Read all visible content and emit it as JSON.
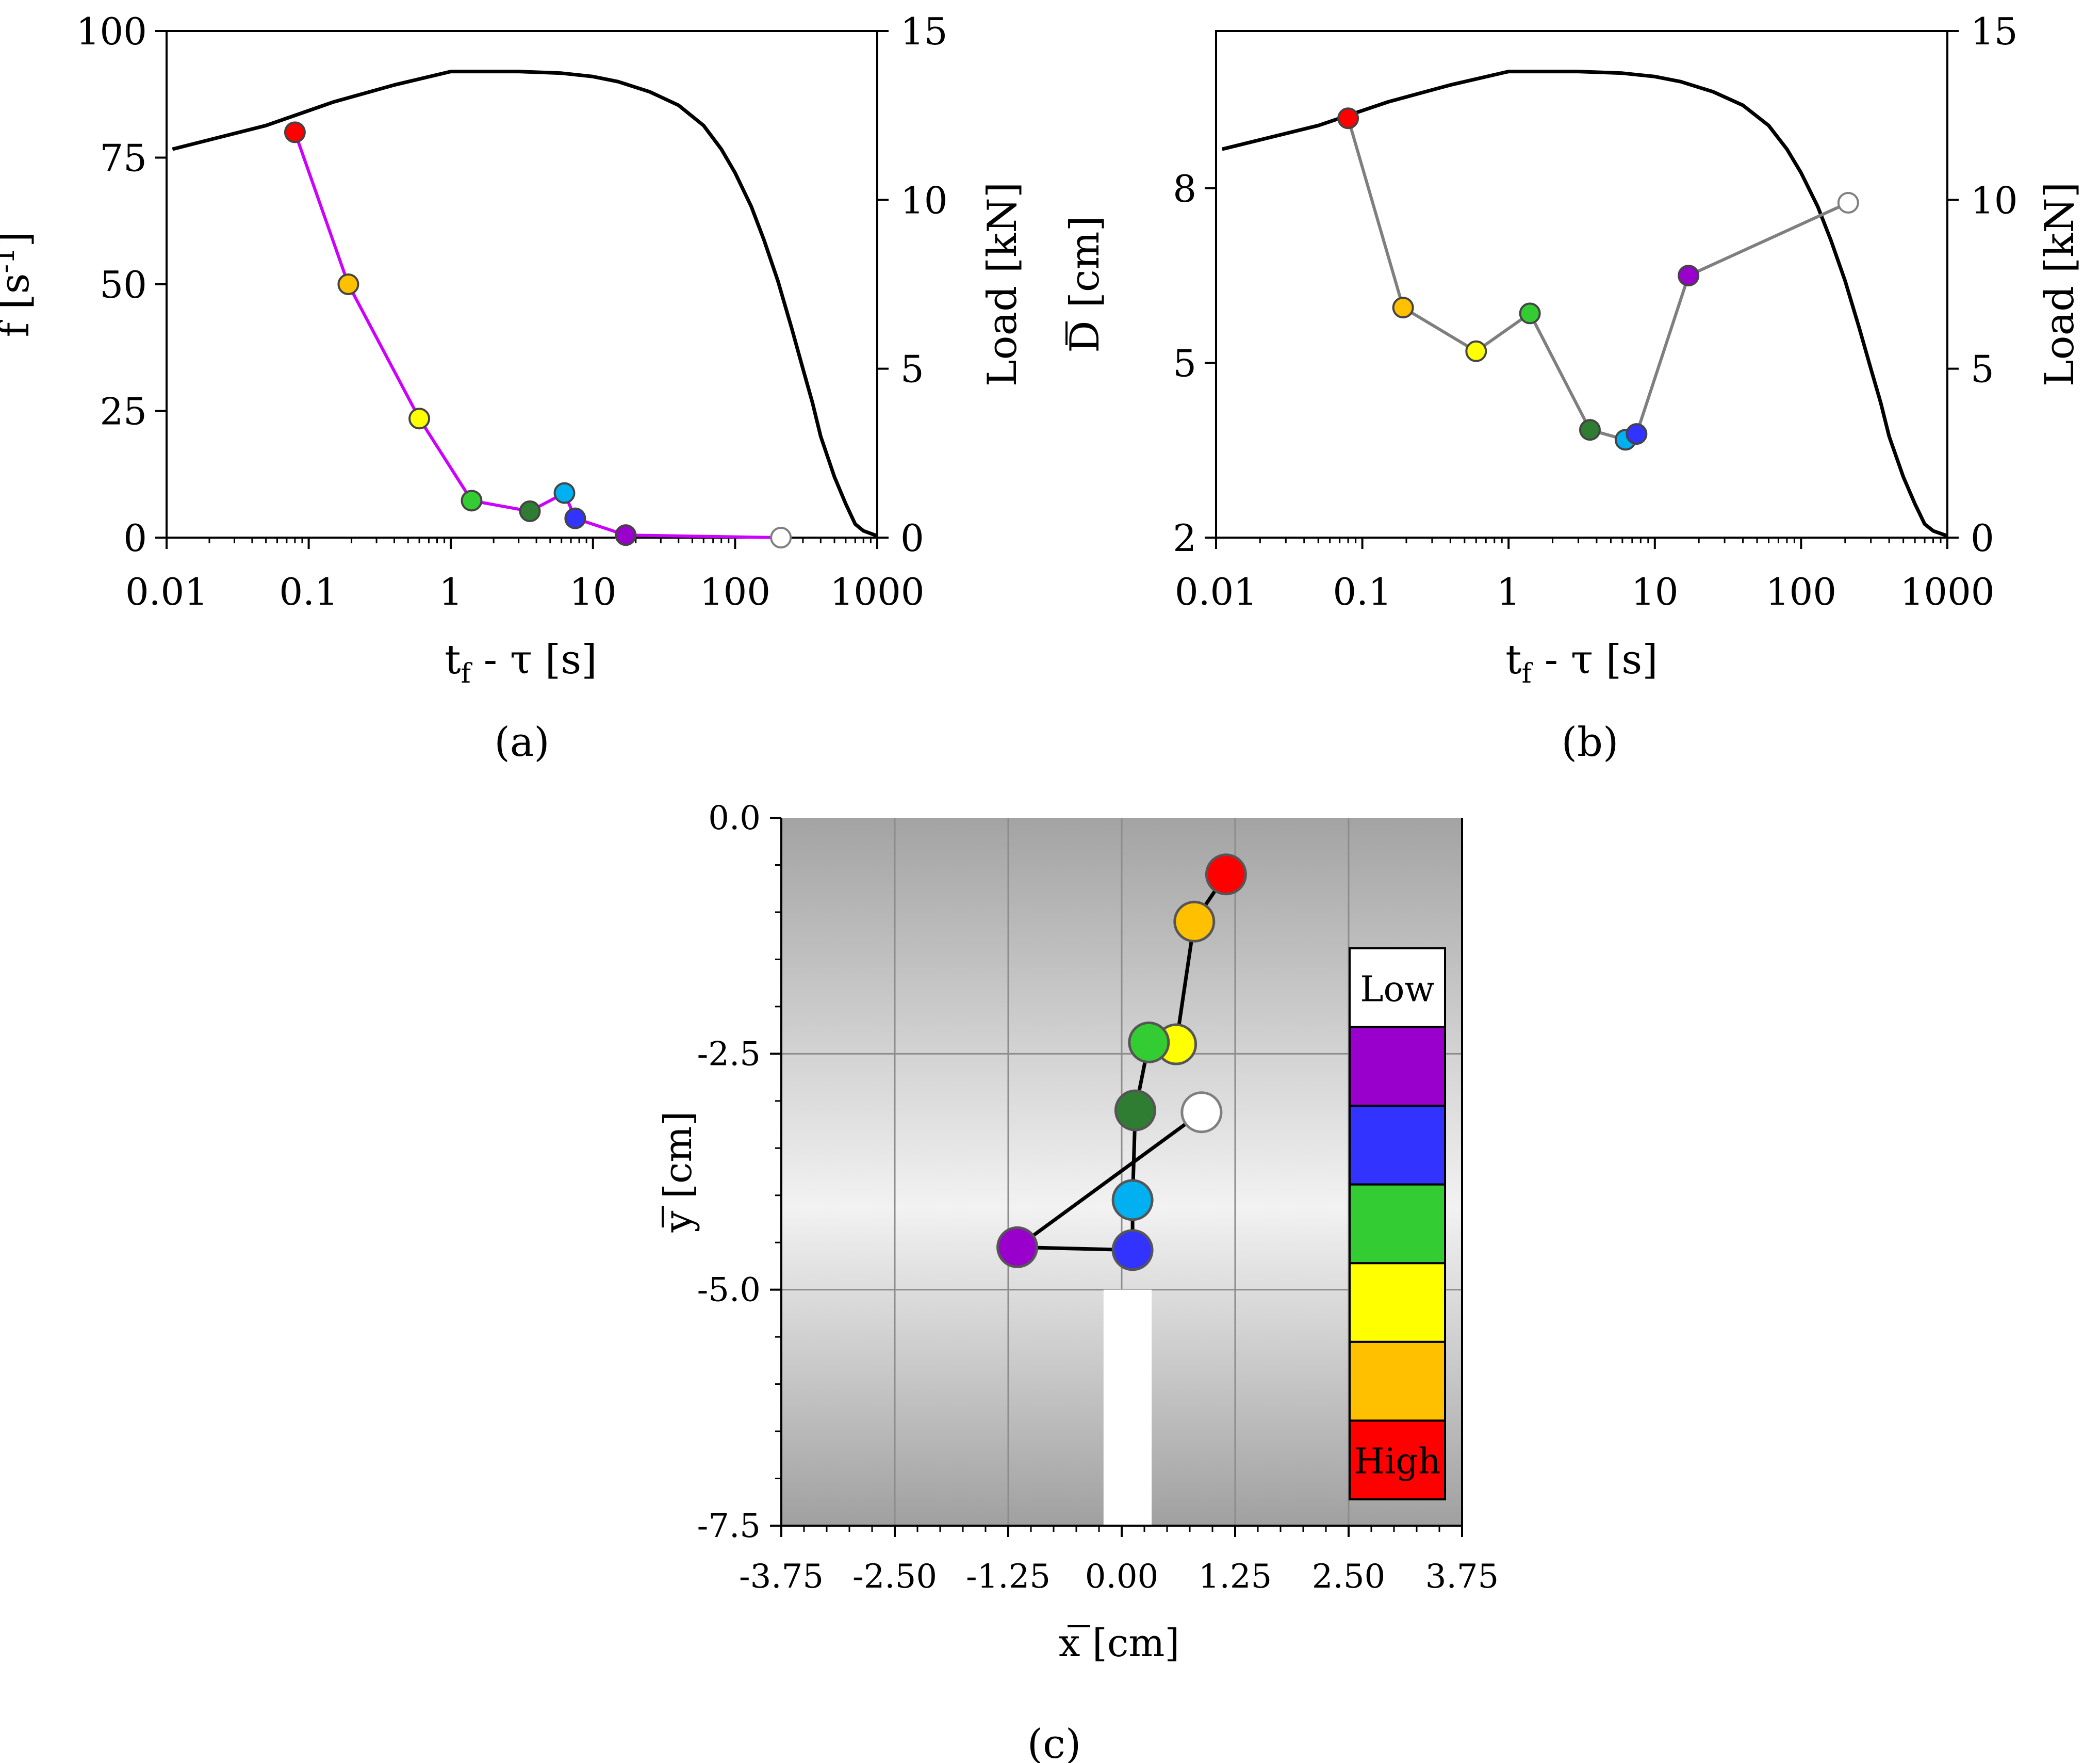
{
  "chart_data": [
    {
      "panel": "(a)",
      "type": "line",
      "xscale": "log",
      "xlim": [
        0.01,
        1000
      ],
      "x_ticks": [
        "0.01",
        "0.1",
        "1",
        "10",
        "100",
        "1000"
      ],
      "xlabel": "t_f - τ [s]",
      "ylabel": "f [s^-1]",
      "ylim": [
        0,
        100
      ],
      "y_ticks": [
        "0",
        "25",
        "50",
        "75",
        "100"
      ],
      "y2label": "Load [kN]",
      "y2lim": [
        0,
        15
      ],
      "y2_ticks": [
        "0",
        "5",
        "10",
        "15"
      ],
      "series": [
        {
          "axis": "y",
          "line_color": "#cc00ff",
          "points": [
            {
              "x": 0.08,
              "y": 80,
              "color": "#ff0000"
            },
            {
              "x": 0.19,
              "y": 50,
              "color": "#ffc000"
            },
            {
              "x": 0.6,
              "y": 23.5,
              "color": "#ffff00"
            },
            {
              "x": 1.4,
              "y": 7.3,
              "color": "#33cc33"
            },
            {
              "x": 3.6,
              "y": 5.2,
              "color": "#2e7d32"
            },
            {
              "x": 6.3,
              "y": 8.8,
              "color": "#00b0f0"
            },
            {
              "x": 7.5,
              "y": 3.8,
              "color": "#3333ff"
            },
            {
              "x": 17,
              "y": 0.5,
              "color": "#9900cc"
            },
            {
              "x": 210,
              "y": 0,
              "color": "#ffffff"
            }
          ]
        },
        {
          "axis": "y2",
          "line_color": "#000000",
          "x": [
            0.011,
            0.05,
            0.15,
            0.4,
            1,
            1.5,
            3,
            6,
            10,
            15,
            25,
            40,
            60,
            80,
            100,
            130,
            160,
            200,
            250,
            300,
            350,
            400,
            500,
            600,
            700,
            800,
            1000
          ],
          "y": [
            11.5,
            12.2,
            12.9,
            13.4,
            13.8,
            13.8,
            13.8,
            13.75,
            13.65,
            13.5,
            13.2,
            12.8,
            12.2,
            11.5,
            10.8,
            9.8,
            8.8,
            7.6,
            6.2,
            5.0,
            4.0,
            3.0,
            1.8,
            1.0,
            0.4,
            0.2,
            0.05
          ]
        }
      ]
    },
    {
      "panel": "(b)",
      "type": "line",
      "xscale": "log",
      "xlim": [
        0.01,
        1000
      ],
      "x_ticks": [
        "0.01",
        "0.1",
        "1",
        "10",
        "100",
        "1000"
      ],
      "xlabel": "t_f - τ [s]",
      "ylabel": "D [cm]",
      "ylim": [
        2,
        10.7
      ],
      "y_ticks": [
        "2",
        "5",
        "8"
      ],
      "y2label": "Load [kN]",
      "y2lim": [
        0,
        15
      ],
      "y2_ticks": [
        "0",
        "5",
        "10",
        "15"
      ],
      "series": [
        {
          "axis": "y",
          "line_color": "#7f7f7f",
          "points": [
            {
              "x": 0.08,
              "y": 9.2,
              "color": "#ff0000"
            },
            {
              "x": 0.19,
              "y": 5.95,
              "color": "#ffc000"
            },
            {
              "x": 0.6,
              "y": 5.2,
              "color": "#ffff00"
            },
            {
              "x": 1.4,
              "y": 5.85,
              "color": "#33cc33"
            },
            {
              "x": 3.6,
              "y": 3.85,
              "color": "#2e7d32"
            },
            {
              "x": 6.3,
              "y": 3.68,
              "color": "#00b0f0"
            },
            {
              "x": 7.5,
              "y": 3.78,
              "color": "#3333ff"
            },
            {
              "x": 17,
              "y": 6.5,
              "color": "#9900cc"
            },
            {
              "x": 210,
              "y": 7.75,
              "color": "#ffffff"
            }
          ]
        },
        {
          "axis": "y2",
          "line_color": "#000000",
          "x": [
            0.011,
            0.05,
            0.15,
            0.4,
            1,
            1.5,
            3,
            6,
            10,
            15,
            25,
            40,
            60,
            80,
            100,
            130,
            160,
            200,
            250,
            300,
            350,
            400,
            500,
            600,
            700,
            800,
            1000
          ],
          "y": [
            11.5,
            12.2,
            12.9,
            13.4,
            13.8,
            13.8,
            13.8,
            13.75,
            13.65,
            13.5,
            13.2,
            12.8,
            12.2,
            11.5,
            10.8,
            9.8,
            8.8,
            7.6,
            6.2,
            5.0,
            4.0,
            3.0,
            1.8,
            1.0,
            0.4,
            0.2,
            0.05
          ]
        }
      ]
    },
    {
      "panel": "(c)",
      "type": "scatter",
      "xlabel": "x [cm]",
      "ylabel": "y [cm]",
      "xlim": [
        -3.75,
        3.75
      ],
      "ylim": [
        -7.5,
        0
      ],
      "x_ticks": [
        "-3.75",
        "-2.50",
        "-1.25",
        "0.00",
        "1.25",
        "2.50",
        "3.75"
      ],
      "y_ticks": [
        "0.0",
        "-2.5",
        "-5.0",
        "-7.5"
      ],
      "background": "gray gradient, lighter toward the middle",
      "grid": true,
      "line_color": "#000000",
      "points": [
        {
          "x": 1.15,
          "y": -0.6,
          "color": "#ff0000"
        },
        {
          "x": 0.8,
          "y": -1.1,
          "color": "#ffc000"
        },
        {
          "x": 0.6,
          "y": -2.4,
          "color": "#ffff00"
        },
        {
          "x": 0.3,
          "y": -2.38,
          "color": "#33cc33"
        },
        {
          "x": 0.15,
          "y": -3.1,
          "color": "#2e7d32"
        },
        {
          "x": 0.12,
          "y": -4.05,
          "color": "#00b0f0"
        },
        {
          "x": 0.12,
          "y": -4.58,
          "color": "#3333ff"
        },
        {
          "x": -1.15,
          "y": -4.55,
          "color": "#9900cc"
        },
        {
          "x": 0.88,
          "y": -3.12,
          "color": "#ffffff"
        }
      ],
      "legend": {
        "placement": "right",
        "label_low": "Low",
        "label_high": "High",
        "colors": [
          "#ffffff",
          "#9900cc",
          "#3333ff",
          "#33cc33",
          "#ffff00",
          "#ffc000",
          "#ff0000"
        ]
      }
    }
  ],
  "panel_labels": [
    "(a)",
    "(b)",
    "(c)"
  ]
}
